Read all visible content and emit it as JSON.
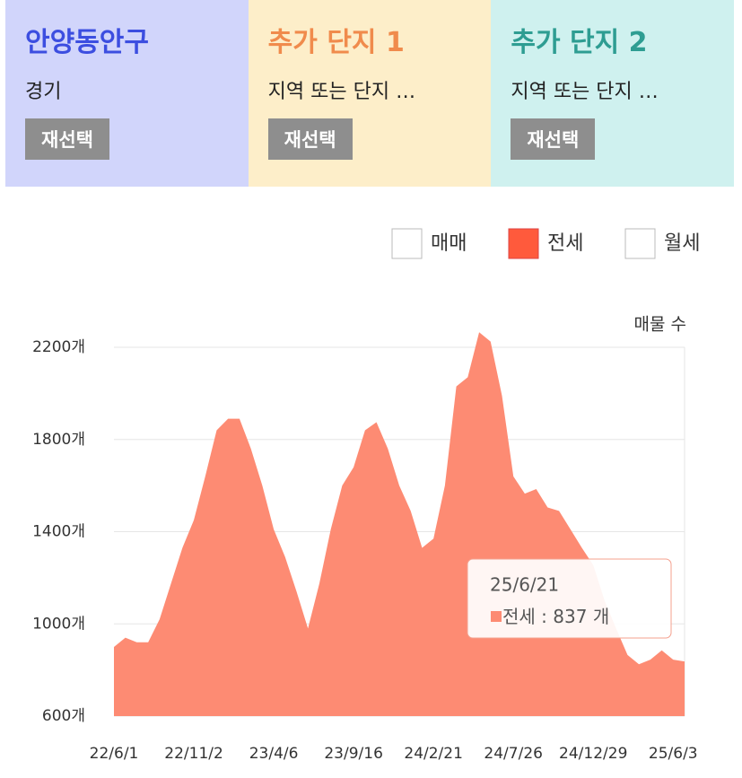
{
  "tabs": [
    {
      "title": "안양동안구",
      "subtitle": "경기",
      "button": "재선택"
    },
    {
      "title": "추가 단지 1",
      "subtitle": "지역 또는 단지 …",
      "button": "재선택"
    },
    {
      "title": "추가 단지 2",
      "subtitle": "지역 또는 단지 …",
      "button": "재선택"
    }
  ],
  "legend_other": [
    "매매",
    "월세"
  ],
  "chart_data": {
    "type": "area",
    "y_axis_label": "매물 수",
    "categories": [
      "22/6/1",
      null,
      null,
      null,
      null,
      null,
      null,
      "22/11/2",
      null,
      null,
      null,
      null,
      null,
      null,
      "23/4/6",
      null,
      null,
      null,
      null,
      null,
      null,
      "23/9/16",
      null,
      null,
      null,
      null,
      null,
      null,
      "24/2/21",
      null,
      null,
      null,
      null,
      null,
      null,
      "24/7/26",
      null,
      null,
      null,
      null,
      null,
      null,
      "24/12/29",
      null,
      null,
      null,
      null,
      null,
      null,
      "25/6/3",
      null
    ],
    "series": [
      {
        "name": "전세",
        "color": "#fd8b73",
        "values": [
          900,
          940,
          920,
          920,
          1020,
          1175,
          1330,
          1450,
          1640,
          1840,
          1890,
          1890,
          1760,
          1600,
          1410,
          1290,
          1140,
          980,
          1175,
          1410,
          1600,
          1680,
          1840,
          1875,
          1760,
          1600,
          1490,
          1330,
          1370,
          1600,
          2030,
          2070,
          2265,
          2225,
          1990,
          1640,
          1565,
          1585,
          1505,
          1490,
          1410,
          1330,
          1255,
          1100,
          980,
          865,
          825,
          845,
          885,
          845,
          837
        ]
      }
    ],
    "ylim": [
      600,
      2200
    ],
    "yticks": [
      {
        "value": 600,
        "label": "600개"
      },
      {
        "value": 1000,
        "label": "1000개"
      },
      {
        "value": 1400,
        "label": "1400개"
      },
      {
        "value": 1800,
        "label": "1800개"
      },
      {
        "value": 2200,
        "label": "2200개"
      }
    ],
    "grid": true,
    "tooltip": {
      "date": "25/6/21",
      "separator": ":",
      "unit": "개"
    }
  }
}
